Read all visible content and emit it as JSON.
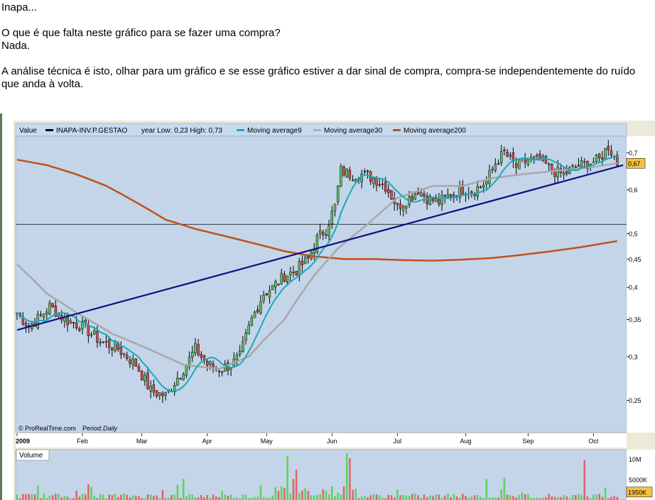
{
  "post": {
    "line1": "Inapa...",
    "line2": "O que é que falta neste gráfico para se fazer uma compra?",
    "line3": "Nada.",
    "line4": "A análise técnica é isto, olhar para um gráfico e se esse gráfico estiver a dar sinal de compra, compra-se independentemente do ruído",
    "line5": "que anda à volta."
  },
  "chart_data": {
    "type": "candlestick",
    "legend": {
      "value_label": "Value",
      "symbol": "INAPA-INV.P.GESTAO",
      "range_text": "year Low: 0,23 High: 0,73",
      "ma9": "Moving average9",
      "ma30": "Moving average30",
      "ma200": "Moving average200"
    },
    "credit": "© ProRealTime.com",
    "period_label": "Period:",
    "period_value": "Daily",
    "y_scale": "log",
    "ylim": [
      0.22,
      0.75
    ],
    "y_ticks": [
      {
        "v": 0.7,
        "t": "0,7"
      },
      {
        "v": 0.6,
        "t": "0,6"
      },
      {
        "v": 0.5,
        "t": "0,5"
      },
      {
        "v": 0.45,
        "t": "0,45"
      },
      {
        "v": 0.4,
        "t": "0,4"
      },
      {
        "v": 0.35,
        "t": "0,35"
      },
      {
        "v": 0.3,
        "t": "0,3"
      },
      {
        "v": 0.25,
        "t": "0,25"
      }
    ],
    "last_price": {
      "v": 0.67,
      "t": "0,67"
    },
    "horizontal_line": 0.52,
    "trendline": [
      {
        "d": 0,
        "v": 0.335
      },
      {
        "d": 204,
        "v": 0.665
      }
    ],
    "x_ticks": [
      {
        "d": 0,
        "t": "2009",
        "bold": true
      },
      {
        "d": 22,
        "t": "Feb"
      },
      {
        "d": 42,
        "t": "Mar"
      },
      {
        "d": 64,
        "t": "Apr"
      },
      {
        "d": 84,
        "t": "May"
      },
      {
        "d": 106,
        "t": "Jun"
      },
      {
        "d": 128,
        "t": "Jul"
      },
      {
        "d": 151,
        "t": "Aug"
      },
      {
        "d": 172,
        "t": "Sep"
      },
      {
        "d": 194,
        "t": "Oct"
      }
    ],
    "num_days": 203,
    "close_keypoints": [
      [
        0,
        0.36
      ],
      [
        4,
        0.34
      ],
      [
        8,
        0.355
      ],
      [
        11,
        0.37
      ],
      [
        16,
        0.35
      ],
      [
        22,
        0.34
      ],
      [
        28,
        0.32
      ],
      [
        34,
        0.31
      ],
      [
        40,
        0.29
      ],
      [
        45,
        0.26
      ],
      [
        50,
        0.255
      ],
      [
        53,
        0.27
      ],
      [
        57,
        0.29
      ],
      [
        60,
        0.31
      ],
      [
        64,
        0.29
      ],
      [
        68,
        0.285
      ],
      [
        72,
        0.29
      ],
      [
        75,
        0.3
      ],
      [
        79,
        0.35
      ],
      [
        83,
        0.39
      ],
      [
        86,
        0.4
      ],
      [
        90,
        0.42
      ],
      [
        94,
        0.43
      ],
      [
        98,
        0.45
      ],
      [
        101,
        0.49
      ],
      [
        104,
        0.51
      ],
      [
        107,
        0.56
      ],
      [
        109,
        0.65
      ],
      [
        112,
        0.64
      ],
      [
        116,
        0.64
      ],
      [
        120,
        0.63
      ],
      [
        124,
        0.61
      ],
      [
        128,
        0.56
      ],
      [
        132,
        0.58
      ],
      [
        135,
        0.6
      ],
      [
        138,
        0.58
      ],
      [
        142,
        0.57
      ],
      [
        146,
        0.59
      ],
      [
        150,
        0.6
      ],
      [
        154,
        0.6
      ],
      [
        158,
        0.62
      ],
      [
        161,
        0.67
      ],
      [
        164,
        0.7
      ],
      [
        168,
        0.66
      ],
      [
        172,
        0.68
      ],
      [
        176,
        0.68
      ],
      [
        180,
        0.65
      ],
      [
        184,
        0.64
      ],
      [
        188,
        0.66
      ],
      [
        192,
        0.67
      ],
      [
        196,
        0.68
      ],
      [
        199,
        0.72
      ],
      [
        202,
        0.67
      ]
    ],
    "ma30_keypoints": [
      [
        0,
        0.44
      ],
      [
        10,
        0.39
      ],
      [
        20,
        0.36
      ],
      [
        32,
        0.33
      ],
      [
        44,
        0.31
      ],
      [
        56,
        0.29
      ],
      [
        68,
        0.285
      ],
      [
        78,
        0.3
      ],
      [
        90,
        0.35
      ],
      [
        100,
        0.42
      ],
      [
        108,
        0.47
      ],
      [
        118,
        0.52
      ],
      [
        128,
        0.58
      ],
      [
        140,
        0.61
      ],
      [
        150,
        0.61
      ],
      [
        160,
        0.63
      ],
      [
        170,
        0.64
      ],
      [
        182,
        0.65
      ],
      [
        194,
        0.66
      ],
      [
        202,
        0.67
      ]
    ],
    "ma200_keypoints": [
      [
        0,
        0.68
      ],
      [
        10,
        0.665
      ],
      [
        20,
        0.64
      ],
      [
        30,
        0.61
      ],
      [
        40,
        0.57
      ],
      [
        50,
        0.53
      ],
      [
        60,
        0.51
      ],
      [
        70,
        0.495
      ],
      [
        80,
        0.48
      ],
      [
        90,
        0.465
      ],
      [
        100,
        0.455
      ],
      [
        110,
        0.45
      ],
      [
        120,
        0.45
      ],
      [
        130,
        0.448
      ],
      [
        140,
        0.447
      ],
      [
        150,
        0.449
      ],
      [
        160,
        0.452
      ],
      [
        170,
        0.458
      ],
      [
        180,
        0.465
      ],
      [
        190,
        0.473
      ],
      [
        202,
        0.485
      ]
    ],
    "volume": {
      "label": "Volume",
      "y_ticks": [
        {
          "v": 10000,
          "t": "10M"
        },
        {
          "v": 5000,
          "t": "5000K"
        }
      ],
      "last": {
        "v": 1950,
        "t": "1950K"
      },
      "ylim": [
        0,
        12000
      ]
    }
  }
}
